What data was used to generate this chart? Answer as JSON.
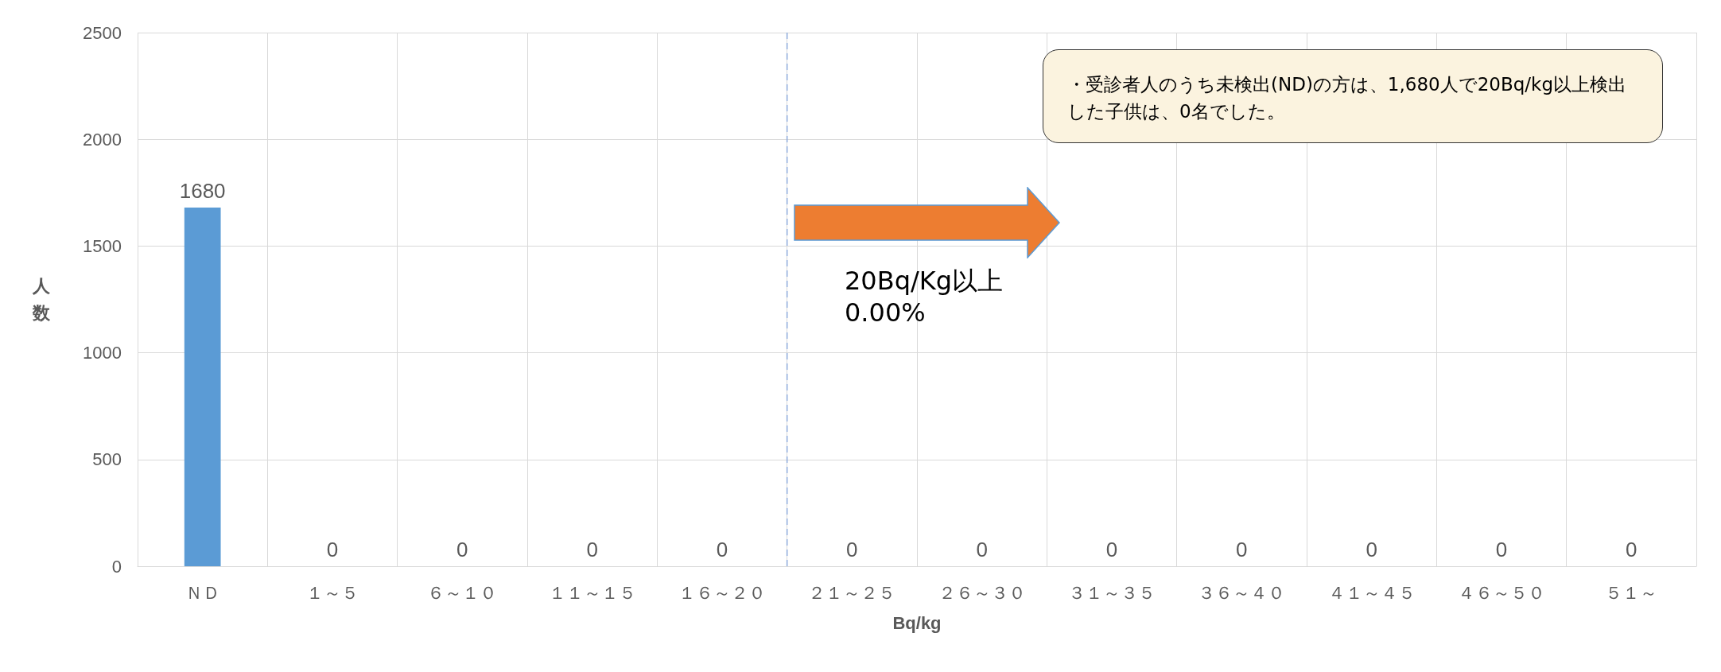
{
  "chart_data": {
    "type": "bar",
    "xlabel": "Bq/kg",
    "ylabel": "人数",
    "categories": [
      "ＮＤ",
      "１～５",
      "６～１０",
      "１１～１５",
      "１６～２０",
      "２１～２５",
      "２６～３０",
      "３１～３５",
      "３６～４０",
      "４１～４５",
      "４６～５０",
      "５１～"
    ],
    "values": [
      1680,
      0,
      0,
      0,
      0,
      0,
      0,
      0,
      0,
      0,
      0,
      0
    ],
    "color": "#5b9bd5",
    "ylim": [
      0,
      2500
    ],
    "yticks": [
      0,
      500,
      1000,
      1500,
      2000,
      2500
    ],
    "grid": true,
    "data_labels": true,
    "ref_lines": [
      {
        "axis": "x",
        "value": "２１～２５",
        "color": "#8eaadb",
        "line_style": "dashed"
      }
    ],
    "annotations": [
      "・受診者人のうち未検出(ND)の方は、1,680人で20Bq/kg以上検出した子供は、0名でした。",
      "20Bq/Kg以上\n0.00%"
    ]
  }
}
